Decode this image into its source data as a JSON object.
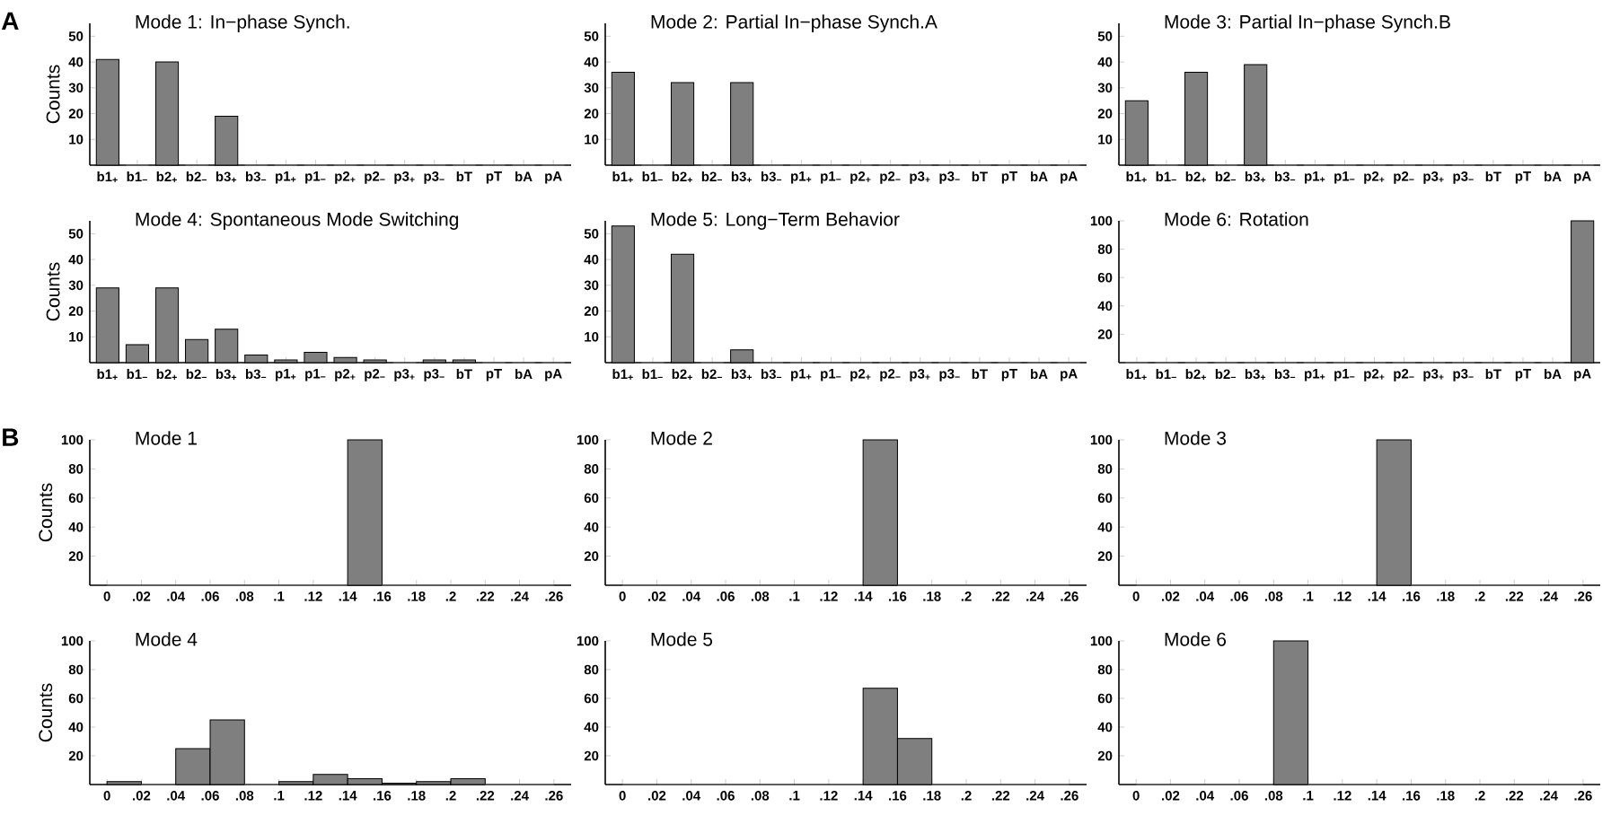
{
  "chart_data": [
    {
      "type": "bar",
      "title": "Mode 1: In−phase Synch.",
      "ylabel": "Counts",
      "annotations": [
        "A"
      ],
      "categories": [
        "b1$_{+}$",
        "b1$_{−}$",
        "b2$_{+}$",
        "b2$_{−}$",
        "b3$_{+}$",
        "b3$_{−}$",
        "p1$_{+}$",
        "p1$_{−}$",
        "p2$_{+}$",
        "p2$_{−}$",
        "p3$_{+}$",
        "p3$_{−}$",
        "bT",
        "pT",
        "bA",
        "pA"
      ],
      "values": [
        41,
        0,
        40,
        0,
        19,
        0,
        0,
        0,
        0,
        0,
        0,
        0,
        0,
        0,
        0,
        0
      ],
      "color": "#7f7f7f",
      "ylim": [
        0,
        55
      ],
      "yticks": [
        10,
        20,
        30,
        40,
        50
      ]
    },
    {
      "type": "bar",
      "title": "Mode 2: Partial In−phase Synch.A",
      "categories": [
        "b1$_{+}$",
        "b1$_{−}$",
        "b2$_{+}$",
        "b2$_{−}$",
        "b3$_{+}$",
        "b3$_{−}$",
        "p1$_{+}$",
        "p1$_{−}$",
        "p2$_{+}$",
        "p2$_{−}$",
        "p3$_{+}$",
        "p3$_{−}$",
        "bT",
        "pT",
        "bA",
        "pA"
      ],
      "values": [
        36,
        0,
        32,
        0,
        32,
        0,
        0,
        0,
        0,
        0,
        0,
        0,
        0,
        0,
        0,
        0
      ],
      "color": "#7f7f7f",
      "ylim": [
        0,
        55
      ],
      "yticks": [
        10,
        20,
        30,
        40,
        50
      ]
    },
    {
      "type": "bar",
      "title": "Mode 3: Partial In−phase Synch.B",
      "categories": [
        "b1$_{+}$",
        "b1$_{−}$",
        "b2$_{+}$",
        "b2$_{−}$",
        "b3$_{+}$",
        "b3$_{−}$",
        "p1$_{+}$",
        "p1$_{−}$",
        "p2$_{+}$",
        "p2$_{−}$",
        "p3$_{+}$",
        "p3$_{−}$",
        "bT",
        "pT",
        "bA",
        "pA"
      ],
      "values": [
        25,
        0,
        36,
        0,
        39,
        0,
        0,
        0,
        0,
        0,
        0,
        0,
        0,
        0,
        0,
        0
      ],
      "color": "#7f7f7f",
      "ylim": [
        0,
        55
      ],
      "yticks": [
        10,
        20,
        30,
        40,
        50
      ]
    },
    {
      "type": "bar",
      "title": "Mode 4: Spontaneous Mode Switching",
      "ylabel": "Counts",
      "categories": [
        "b1$_{+}$",
        "b1$_{−}$",
        "b2$_{+}$",
        "b2$_{−}$",
        "b3$_{+}$",
        "b3$_{−}$",
        "p1$_{+}$",
        "p1$_{−}$",
        "p2$_{+}$",
        "p2$_{−}$",
        "p3$_{+}$",
        "p3$_{−}$",
        "bT",
        "pT",
        "bA",
        "pA"
      ],
      "values": [
        29,
        7,
        29,
        9,
        13,
        3,
        1,
        4,
        2,
        1,
        0,
        1,
        1,
        0,
        0,
        0
      ],
      "color": "#7f7f7f",
      "ylim": [
        0,
        55
      ],
      "yticks": [
        10,
        20,
        30,
        40,
        50
      ]
    },
    {
      "type": "bar",
      "title": "Mode 5: Long−Term Behavior",
      "categories": [
        "b1$_{+}$",
        "b1$_{−}$",
        "b2$_{+}$",
        "b2$_{−}$",
        "b3$_{+}$",
        "b3$_{−}$",
        "p1$_{+}$",
        "p1$_{−}$",
        "p2$_{+}$",
        "p2$_{−}$",
        "p3$_{+}$",
        "p3$_{−}$",
        "bT",
        "pT",
        "bA",
        "pA"
      ],
      "values": [
        53,
        0,
        42,
        0,
        5,
        0,
        0,
        0,
        0,
        0,
        0,
        0,
        0,
        0,
        0,
        0
      ],
      "color": "#7f7f7f",
      "ylim": [
        0,
        55
      ],
      "yticks": [
        10,
        20,
        30,
        40,
        50
      ]
    },
    {
      "type": "bar",
      "title": "Mode 6: Rotation",
      "categories": [
        "b1$_{+}$",
        "b1$_{−}$",
        "b2$_{+}$",
        "b2$_{−}$",
        "b3$_{+}$",
        "b3$_{−}$",
        "p1$_{+}$",
        "p1$_{−}$",
        "p2$_{+}$",
        "p2$_{−}$",
        "p3$_{+}$",
        "p3$_{−}$",
        "bT",
        "pT",
        "bA",
        "pA"
      ],
      "values": [
        0,
        0,
        0,
        0,
        0,
        0,
        0,
        0,
        0,
        0,
        0,
        0,
        0,
        0,
        0,
        100
      ],
      "color": "#7f7f7f",
      "ylim": [
        0,
        100
      ],
      "yticks": [
        20,
        40,
        60,
        80,
        100
      ]
    },
    {
      "type": "histogram",
      "title": "Mode 1",
      "ylabel": "Counts",
      "annotations": [
        "B"
      ],
      "bins": [
        0,
        0.02,
        0.04,
        0.06,
        0.08,
        0.1,
        0.12,
        0.14,
        0.16,
        0.18,
        0.2,
        0.22,
        0.24,
        0.26
      ],
      "values": [
        0,
        0,
        0,
        0,
        0,
        0,
        0,
        100,
        0,
        0,
        0,
        0,
        0
      ],
      "color": "#7f7f7f",
      "xlim": [
        -0.01,
        0.27
      ],
      "xticks": [
        0,
        {
          "value": 0.02,
          "label": ".02"
        },
        {
          "value": 0.04,
          "label": ".04"
        },
        {
          "value": 0.06,
          "label": ".06"
        },
        {
          "value": 0.08,
          "label": ".08"
        },
        {
          "value": 0.1,
          "label": ".1"
        },
        {
          "value": 0.12,
          "label": ".12"
        },
        {
          "value": 0.14,
          "label": ".14"
        },
        {
          "value": 0.16,
          "label": ".16"
        },
        {
          "value": 0.18,
          "label": ".18"
        },
        {
          "value": 0.2,
          "label": ".2"
        },
        {
          "value": 0.22,
          "label": ".22"
        },
        {
          "value": 0.24,
          "label": ".24"
        },
        {
          "value": 0.26,
          "label": ".26"
        }
      ],
      "ylim": [
        0,
        100
      ],
      "yticks": [
        20,
        40,
        60,
        80,
        100
      ]
    },
    {
      "type": "histogram",
      "title": "Mode 2",
      "bins": [
        0,
        0.02,
        0.04,
        0.06,
        0.08,
        0.1,
        0.12,
        0.14,
        0.16,
        0.18,
        0.2,
        0.22,
        0.24,
        0.26
      ],
      "values": [
        0,
        0,
        0,
        0,
        0,
        0,
        0,
        100,
        0,
        0,
        0,
        0,
        0
      ],
      "color": "#7f7f7f",
      "xlim": [
        -0.01,
        0.27
      ],
      "xticks": [
        0,
        {
          "value": 0.02,
          "label": ".02"
        },
        {
          "value": 0.04,
          "label": ".04"
        },
        {
          "value": 0.06,
          "label": ".06"
        },
        {
          "value": 0.08,
          "label": ".08"
        },
        {
          "value": 0.1,
          "label": ".1"
        },
        {
          "value": 0.12,
          "label": ".12"
        },
        {
          "value": 0.14,
          "label": ".14"
        },
        {
          "value": 0.16,
          "label": ".16"
        },
        {
          "value": 0.18,
          "label": ".18"
        },
        {
          "value": 0.2,
          "label": ".2"
        },
        {
          "value": 0.22,
          "label": ".22"
        },
        {
          "value": 0.24,
          "label": ".24"
        },
        {
          "value": 0.26,
          "label": ".26"
        }
      ],
      "ylim": [
        0,
        100
      ],
      "yticks": [
        20,
        40,
        60,
        80,
        100
      ]
    },
    {
      "type": "histogram",
      "title": "Mode 3",
      "bins": [
        0,
        0.02,
        0.04,
        0.06,
        0.08,
        0.1,
        0.12,
        0.14,
        0.16,
        0.18,
        0.2,
        0.22,
        0.24,
        0.26
      ],
      "values": [
        0,
        0,
        0,
        0,
        0,
        0,
        0,
        100,
        0,
        0,
        0,
        0,
        0
      ],
      "color": "#7f7f7f",
      "xlim": [
        -0.01,
        0.27
      ],
      "xticks": [
        0,
        {
          "value": 0.02,
          "label": ".02"
        },
        {
          "value": 0.04,
          "label": ".04"
        },
        {
          "value": 0.06,
          "label": ".06"
        },
        {
          "value": 0.08,
          "label": ".08"
        },
        {
          "value": 0.1,
          "label": ".1"
        },
        {
          "value": 0.12,
          "label": ".12"
        },
        {
          "value": 0.14,
          "label": ".14"
        },
        {
          "value": 0.16,
          "label": ".16"
        },
        {
          "value": 0.18,
          "label": ".18"
        },
        {
          "value": 0.2,
          "label": ".2"
        },
        {
          "value": 0.22,
          "label": ".22"
        },
        {
          "value": 0.24,
          "label": ".24"
        },
        {
          "value": 0.26,
          "label": ".26"
        }
      ],
      "ylim": [
        0,
        100
      ],
      "yticks": [
        20,
        40,
        60,
        80,
        100
      ]
    },
    {
      "type": "histogram",
      "title": "Mode 4",
      "ylabel": "Counts",
      "bins": [
        0,
        0.02,
        0.04,
        0.06,
        0.08,
        0.1,
        0.12,
        0.14,
        0.16,
        0.18,
        0.2,
        0.22,
        0.24,
        0.26
      ],
      "values": [
        2,
        0,
        25,
        45,
        0,
        2,
        7,
        4,
        1,
        2,
        4,
        0,
        0
      ],
      "color": "#7f7f7f",
      "xlim": [
        -0.01,
        0.27
      ],
      "xticks": [
        0,
        {
          "value": 0.02,
          "label": ".02"
        },
        {
          "value": 0.04,
          "label": ".04"
        },
        {
          "value": 0.06,
          "label": ".06"
        },
        {
          "value": 0.08,
          "label": ".08"
        },
        {
          "value": 0.1,
          "label": ".1"
        },
        {
          "value": 0.12,
          "label": ".12"
        },
        {
          "value": 0.14,
          "label": ".14"
        },
        {
          "value": 0.16,
          "label": ".16"
        },
        {
          "value": 0.18,
          "label": ".18"
        },
        {
          "value": 0.2,
          "label": ".2"
        },
        {
          "value": 0.22,
          "label": ".22"
        },
        {
          "value": 0.24,
          "label": ".24"
        },
        {
          "value": 0.26,
          "label": ".26"
        }
      ],
      "ylim": [
        0,
        100
      ],
      "yticks": [
        20,
        40,
        60,
        80,
        100
      ]
    },
    {
      "type": "histogram",
      "title": "Mode 5",
      "bins": [
        0,
        0.02,
        0.04,
        0.06,
        0.08,
        0.1,
        0.12,
        0.14,
        0.16,
        0.18,
        0.2,
        0.22,
        0.24,
        0.26
      ],
      "values": [
        0,
        0,
        0,
        0,
        0,
        0,
        0,
        67,
        32,
        0,
        0,
        0,
        0
      ],
      "color": "#7f7f7f",
      "xlim": [
        -0.01,
        0.27
      ],
      "xticks": [
        0,
        {
          "value": 0.02,
          "label": ".02"
        },
        {
          "value": 0.04,
          "label": ".04"
        },
        {
          "value": 0.06,
          "label": ".06"
        },
        {
          "value": 0.08,
          "label": ".08"
        },
        {
          "value": 0.1,
          "label": ".1"
        },
        {
          "value": 0.12,
          "label": ".12"
        },
        {
          "value": 0.14,
          "label": ".14"
        },
        {
          "value": 0.16,
          "label": ".16"
        },
        {
          "value": 0.18,
          "label": ".18"
        },
        {
          "value": 0.2,
          "label": ".2"
        },
        {
          "value": 0.22,
          "label": ".22"
        },
        {
          "value": 0.24,
          "label": ".24"
        },
        {
          "value": 0.26,
          "label": ".26"
        }
      ],
      "ylim": [
        0,
        100
      ],
      "yticks": [
        20,
        40,
        60,
        80,
        100
      ]
    },
    {
      "type": "histogram",
      "title": "Mode 6",
      "bins": [
        0,
        0.02,
        0.04,
        0.06,
        0.08,
        0.1,
        0.12,
        0.14,
        0.16,
        0.18,
        0.2,
        0.22,
        0.24,
        0.26
      ],
      "values": [
        0,
        0,
        0,
        0,
        100,
        0,
        0,
        0,
        0,
        0,
        0,
        0,
        0
      ],
      "color": "#7f7f7f",
      "xlim": [
        -0.01,
        0.27
      ],
      "xticks": [
        0,
        {
          "value": 0.02,
          "label": ".02"
        },
        {
          "value": 0.04,
          "label": ".04"
        },
        {
          "value": 0.06,
          "label": ".06"
        },
        {
          "value": 0.08,
          "label": ".08"
        },
        {
          "value": 0.1,
          "label": ".1"
        },
        {
          "value": 0.12,
          "label": ".12"
        },
        {
          "value": 0.14,
          "label": ".14"
        },
        {
          "value": 0.16,
          "label": ".16"
        },
        {
          "value": 0.18,
          "label": ".18"
        },
        {
          "value": 0.2,
          "label": ".2"
        },
        {
          "value": 0.22,
          "label": ".22"
        },
        {
          "value": 0.24,
          "label": ".24"
        },
        {
          "value": 0.26,
          "label": ".26"
        }
      ],
      "ylim": [
        0,
        100
      ],
      "yticks": [
        20,
        40,
        60,
        80,
        100
      ]
    }
  ]
}
